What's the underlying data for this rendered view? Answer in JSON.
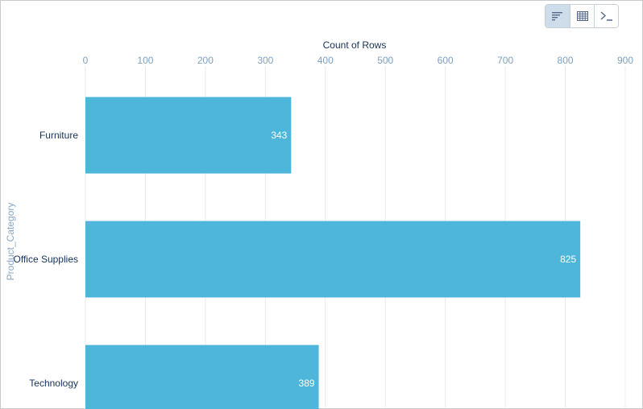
{
  "toolbar": {
    "buttons": [
      {
        "icon": "bar-chart-icon",
        "active": true
      },
      {
        "icon": "table-grid-icon",
        "active": false
      },
      {
        "icon": "terminal-icon",
        "active": false
      }
    ]
  },
  "colors": {
    "bar": "#4db6da",
    "grid": "#e6e9ee"
  },
  "chart_data": {
    "type": "bar",
    "orientation": "horizontal",
    "xlabel": "Count of Rows",
    "ylabel": "Product_Category",
    "xlim": [
      0,
      900
    ],
    "xticks": [
      "0",
      "100",
      "200",
      "300",
      "400",
      "500",
      "600",
      "700",
      "800",
      "900"
    ],
    "categories": [
      "Furniture",
      "Office Supplies",
      "Technology"
    ],
    "values": [
      343,
      825,
      389
    ],
    "value_labels": [
      "343",
      "825",
      "389"
    ],
    "grid": true
  }
}
